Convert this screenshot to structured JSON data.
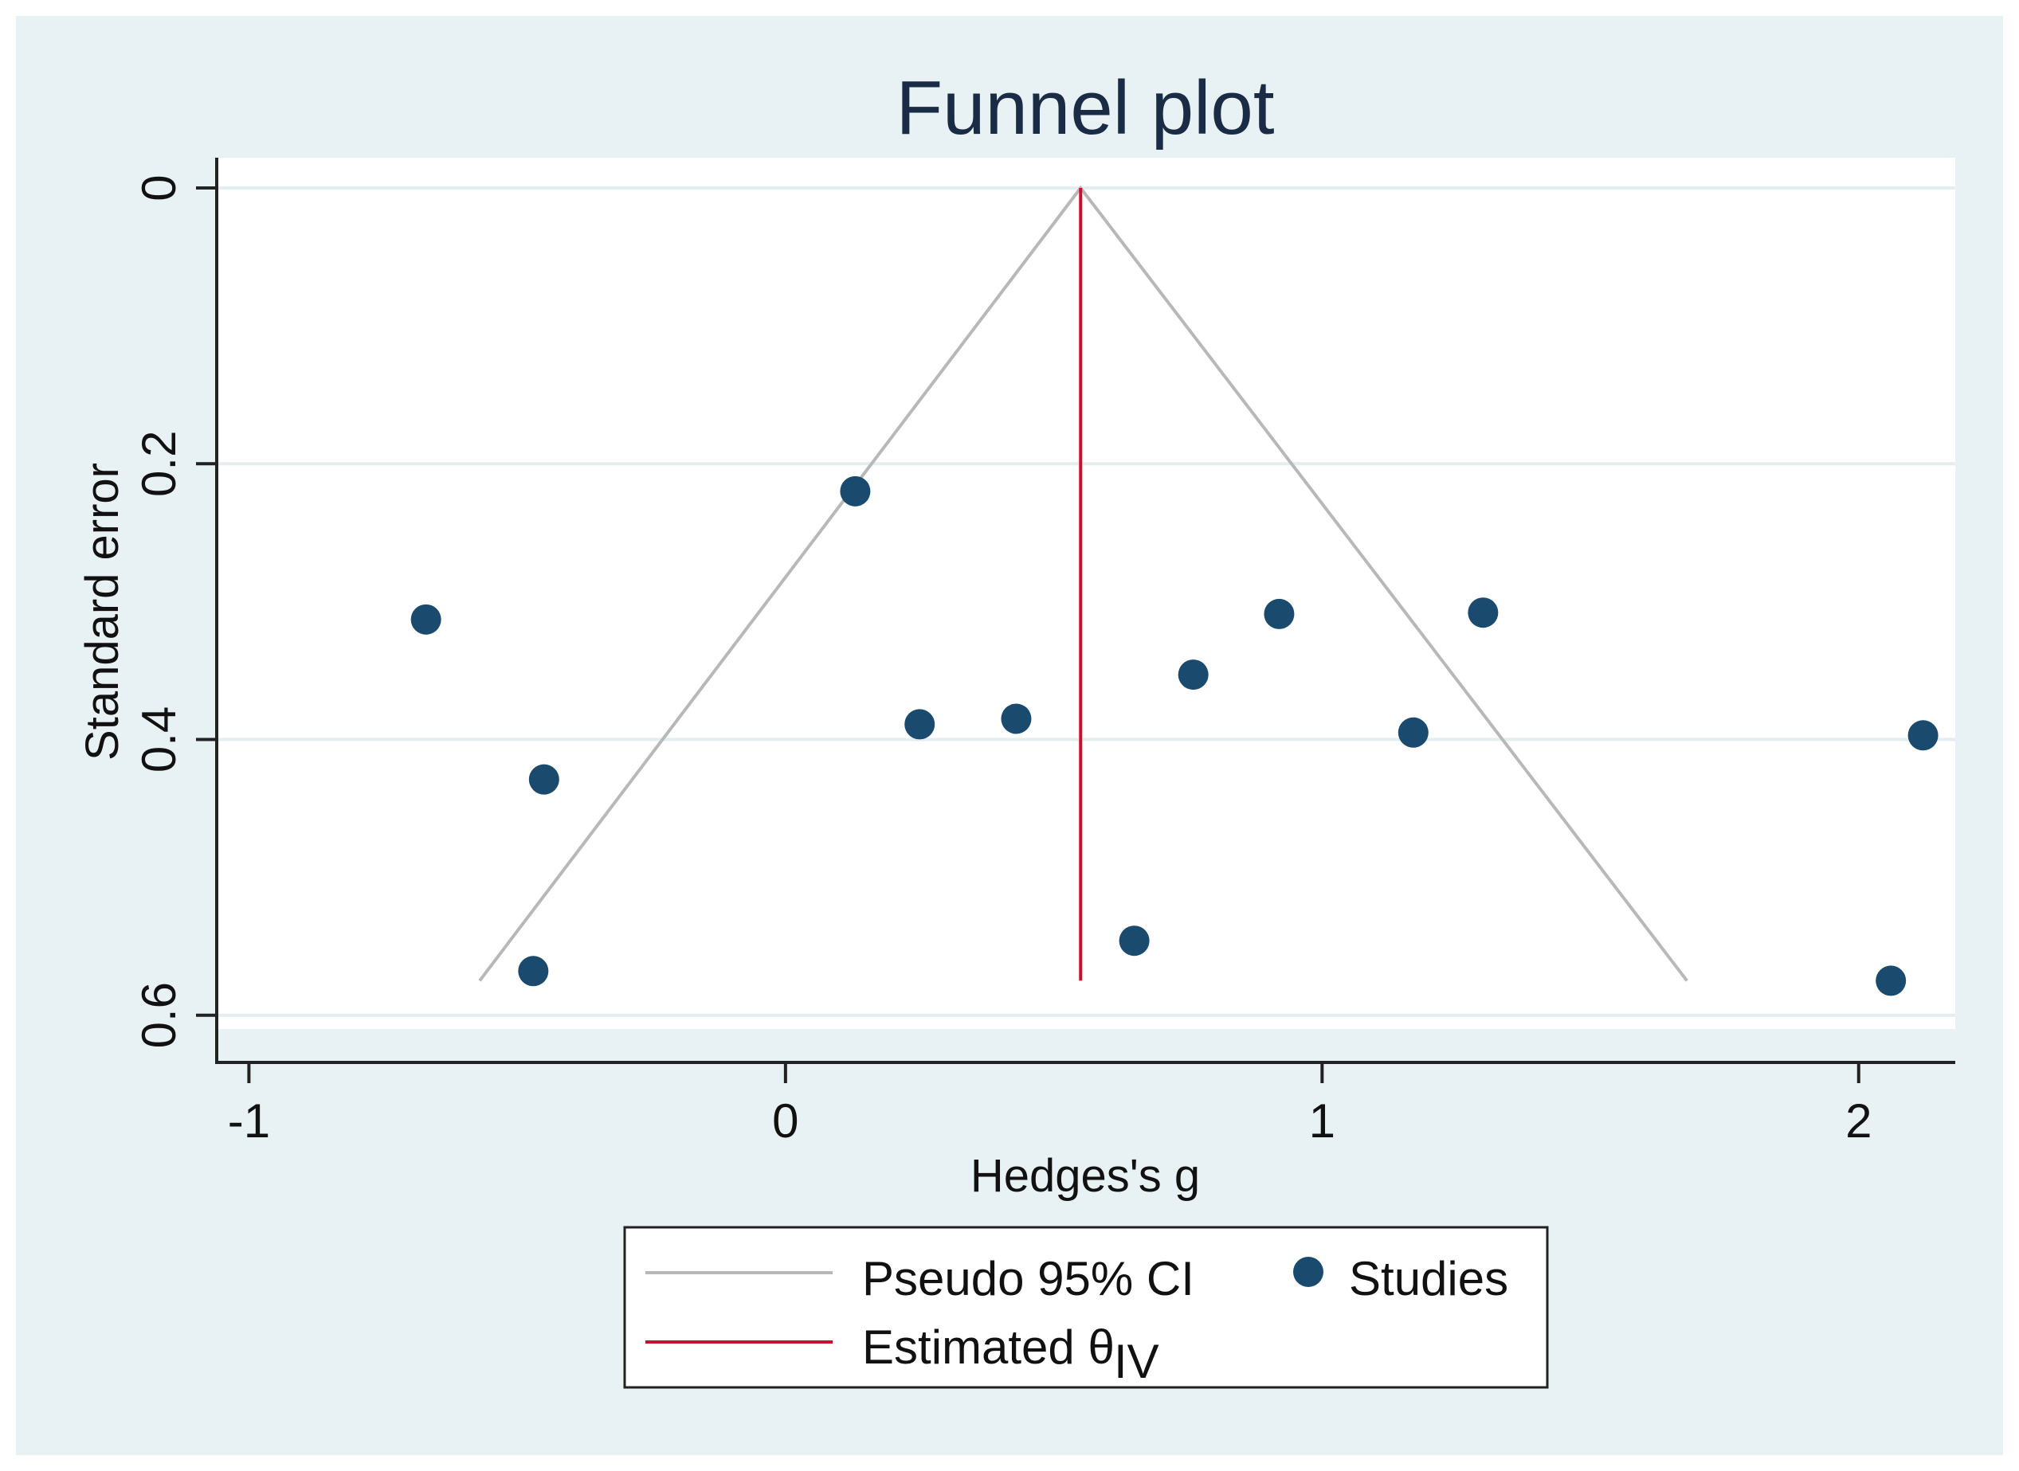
{
  "chart_data": {
    "type": "scatter",
    "title": "Funnel plot",
    "xlabel": "Hedges's g",
    "ylabel": "Standard error",
    "xlim": [
      -1.06,
      2.18
    ],
    "ylim": [
      0,
      0.61
    ],
    "y_reversed": true,
    "x_ticks": [
      -1,
      0,
      1,
      2
    ],
    "x_tick_labels": [
      "-1",
      "0",
      "1",
      "2"
    ],
    "y_ticks": [
      0,
      0.2,
      0.4,
      0.6
    ],
    "y_tick_labels": [
      "0",
      "0.2",
      "0.4",
      "0.6"
    ],
    "grid": true,
    "legend_position": "bottom",
    "series": [
      {
        "name": "Studies",
        "marker": "circle",
        "x": [
          0.13,
          -0.67,
          0.92,
          1.3,
          0.76,
          0.25,
          0.43,
          1.17,
          2.12,
          -0.45,
          0.65,
          -0.47,
          2.06
        ],
        "y": [
          0.22,
          0.313,
          0.309,
          0.308,
          0.353,
          0.389,
          0.385,
          0.395,
          0.397,
          0.429,
          0.546,
          0.568,
          0.575
        ]
      }
    ],
    "lines": [
      {
        "name": "Pseudo 95% CI",
        "x": [
          -0.57,
          0.55,
          1.68
        ],
        "y": [
          0.575,
          0,
          0.575
        ]
      },
      {
        "name": "Estimated θIV",
        "x": [
          0.55,
          0.55
        ],
        "y": [
          0,
          0.575
        ]
      }
    ],
    "legend": [
      {
        "label": "Pseudo 95% CI",
        "kind": "line",
        "color": "#b8b8b8"
      },
      {
        "label": "Studies",
        "kind": "marker",
        "color": "#1a4a6e"
      },
      {
        "label": "Estimated θ",
        "label_subscript": "IV",
        "kind": "line",
        "color": "#c8102e"
      }
    ],
    "colors": {
      "outer_background": "#e8f1f3",
      "plot_background": "#ffffff",
      "grid": "#e4eef0",
      "ci_lines": "#b8b8b8",
      "estimate_line": "#c8102e",
      "markers": "#1a4a6e",
      "title": "#1a2b45"
    }
  }
}
